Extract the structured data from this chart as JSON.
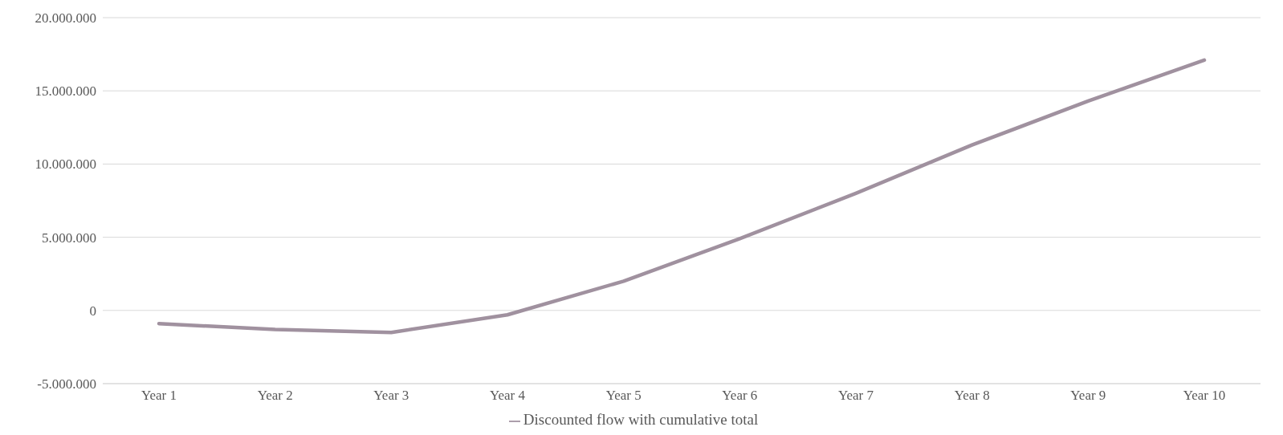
{
  "chart_data": {
    "type": "line",
    "categories": [
      "Year 1",
      "Year 2",
      "Year 3",
      "Year 4",
      "Year 5",
      "Year 6",
      "Year 7",
      "Year 8",
      "Year 9",
      "Year 10"
    ],
    "series": [
      {
        "name": "Discounted flow with cumulative total",
        "color": "#a0919f",
        "values": [
          -900000,
          -1300000,
          -1500000,
          -300000,
          2000000,
          4900000,
          8000000,
          11300000,
          14300000,
          17100000
        ]
      }
    ],
    "ylim": [
      -5000000,
      20000000
    ],
    "yticks": [
      {
        "value": -5000000,
        "label": "-5.000.000"
      },
      {
        "value": 0,
        "label": "0"
      },
      {
        "value": 5000000,
        "label": "5.000.000"
      },
      {
        "value": 10000000,
        "label": "10.000.000"
      },
      {
        "value": 15000000,
        "label": "15.000.000"
      },
      {
        "value": 20000000,
        "label": "20.000.000"
      }
    ],
    "grid": "y",
    "legend": "bottom",
    "marker": "none",
    "line_style": "solid"
  }
}
